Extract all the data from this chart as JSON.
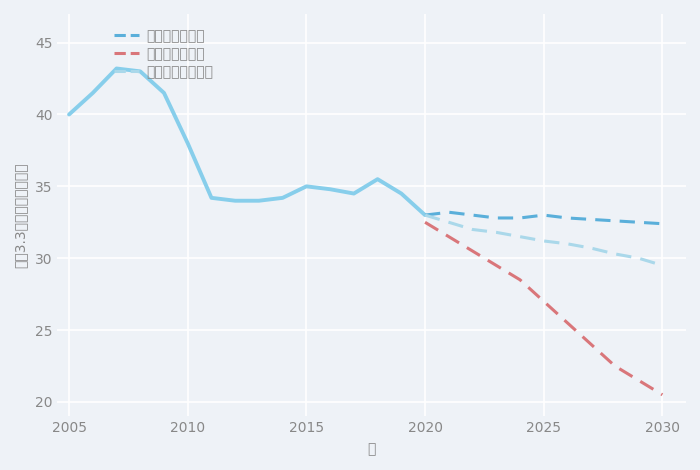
{
  "xlabel": "年",
  "ylabel": "坪（3.3㎡）単価（万円）",
  "background_color": "#eef2f7",
  "plot_bg_color": "#eef2f7",
  "historical_x": [
    2005,
    2006,
    2007,
    2008,
    2009,
    2010,
    2011,
    2012,
    2013,
    2014,
    2015,
    2016,
    2017,
    2018,
    2019,
    2020
  ],
  "historical_y": [
    40.0,
    41.5,
    43.2,
    43.0,
    41.5,
    38.0,
    34.2,
    34.0,
    34.0,
    34.2,
    35.0,
    34.8,
    34.5,
    35.5,
    34.5,
    33.0
  ],
  "good_x": [
    2020,
    2021,
    2022,
    2023,
    2024,
    2025,
    2026,
    2027,
    2028,
    2029,
    2030
  ],
  "good_y": [
    33.0,
    33.2,
    33.0,
    32.8,
    32.8,
    33.0,
    32.8,
    32.7,
    32.6,
    32.5,
    32.4
  ],
  "bad_x": [
    2020,
    2021,
    2022,
    2023,
    2024,
    2025,
    2026,
    2027,
    2028,
    2029,
    2030
  ],
  "bad_y": [
    32.5,
    31.5,
    30.5,
    29.5,
    28.5,
    27.0,
    25.5,
    24.0,
    22.5,
    21.5,
    20.5
  ],
  "normal_x": [
    2020,
    2021,
    2022,
    2023,
    2024,
    2025,
    2026,
    2027,
    2028,
    2029,
    2030
  ],
  "normal_y": [
    33.0,
    32.5,
    32.0,
    31.8,
    31.5,
    31.2,
    31.0,
    30.7,
    30.3,
    30.0,
    29.5
  ],
  "historical_color": "#87CEEB",
  "good_color": "#5aafda",
  "bad_color": "#d9767a",
  "normal_color": "#aad8ea",
  "ylim": [
    19,
    47
  ],
  "xlim": [
    2004.5,
    2031
  ],
  "yticks": [
    20,
    25,
    30,
    35,
    40,
    45
  ],
  "xticks": [
    2005,
    2010,
    2015,
    2020,
    2025,
    2030
  ],
  "legend_labels": [
    "グッドシナリオ",
    "バッドシナリオ",
    "ノーマルシナリオ"
  ],
  "title_fontsize": 19,
  "label_fontsize": 10,
  "tick_fontsize": 10,
  "legend_fontsize": 10,
  "grid_color": "#ffffff",
  "title_color": "#555555",
  "tick_color": "#888888",
  "label_color": "#888888"
}
